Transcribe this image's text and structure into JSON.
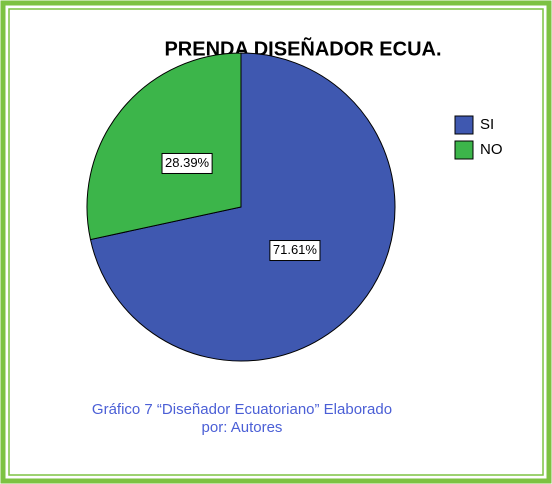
{
  "chart_data": {
    "type": "pie",
    "title": "PRENDA DISEÑADOR ECUA.",
    "categories": [
      "SI",
      "NO"
    ],
    "values": [
      71.61,
      28.39
    ],
    "value_labels": [
      "71.61%",
      "28.39%"
    ],
    "colors": [
      "#3f58b0",
      "#3cb54a"
    ],
    "legend": "right",
    "caption": [
      "Gráfico 7 “Diseñador Ecuatoriano” Elaborado",
      "por: Autores"
    ]
  }
}
